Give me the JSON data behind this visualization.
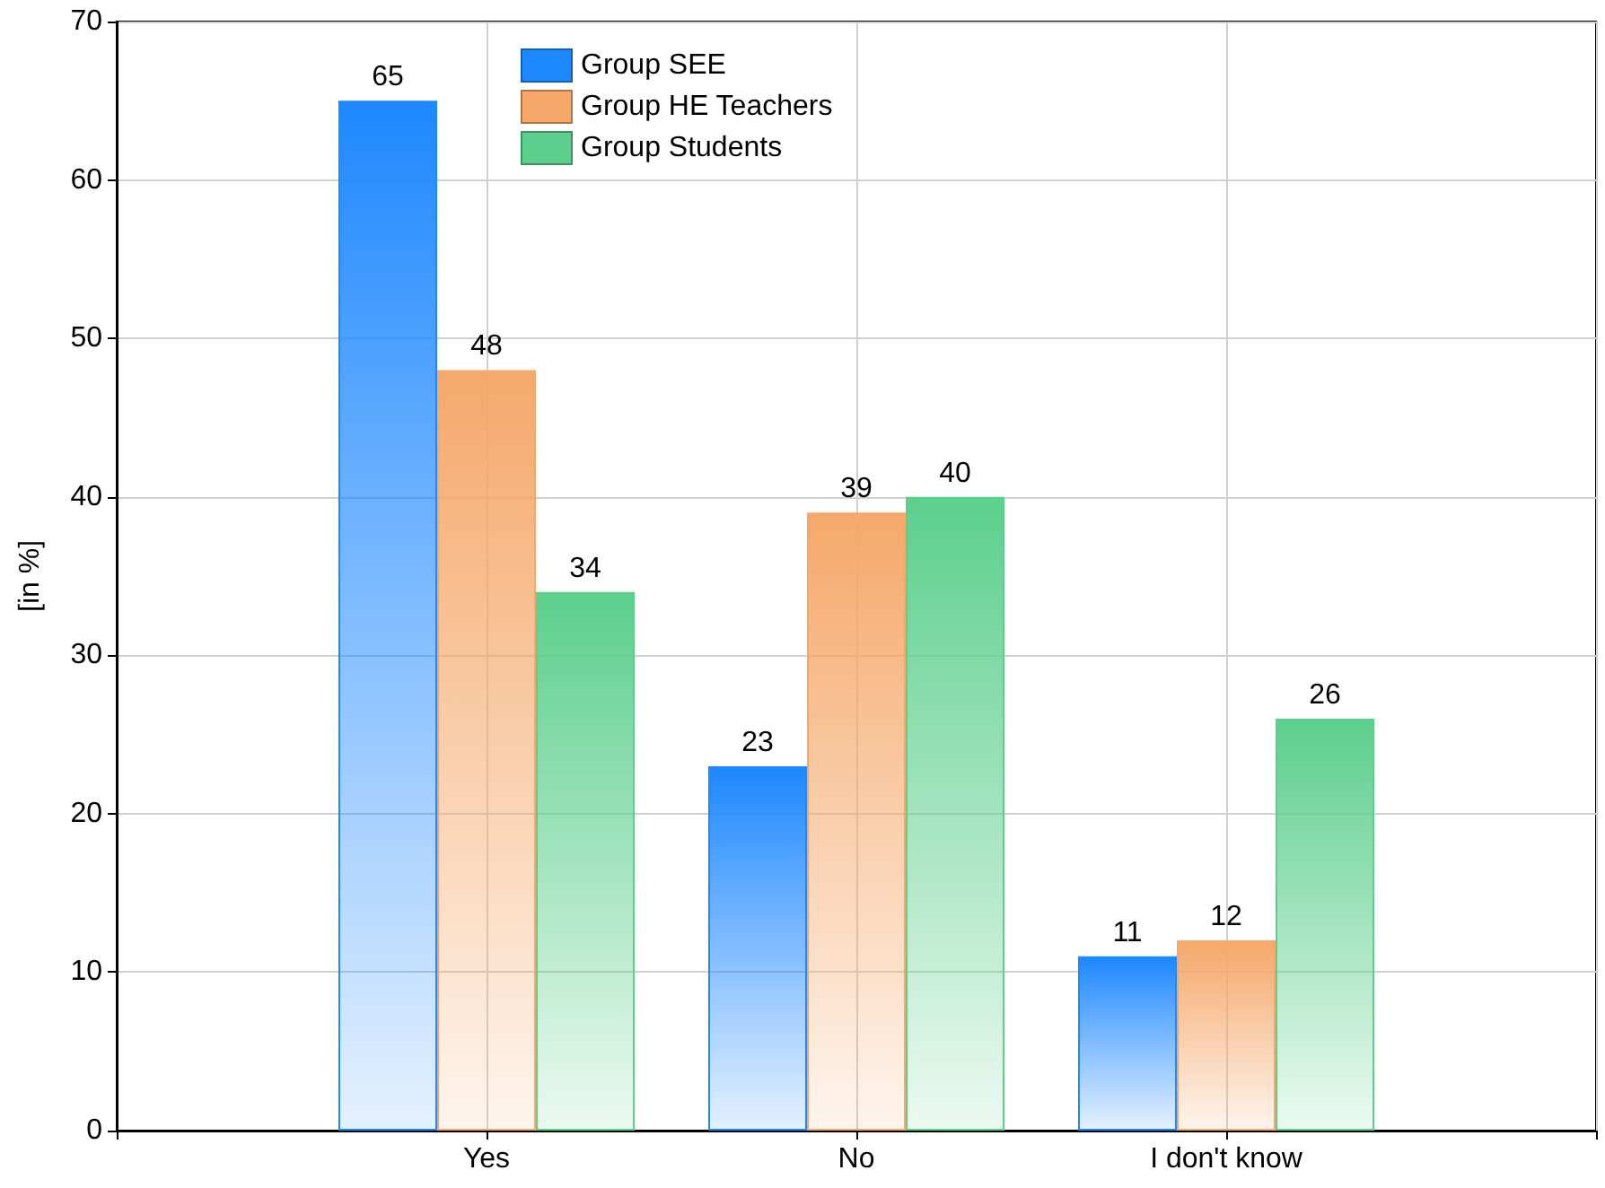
{
  "chart_data": {
    "type": "bar",
    "ylabel": "[in %]",
    "categories": [
      "Yes",
      "No",
      "I don't know"
    ],
    "series": [
      {
        "name": "Group SEE",
        "color": "#1e88ff",
        "values": [
          65,
          23,
          11
        ]
      },
      {
        "name": "Group HE Teachers",
        "color": "#f5a86a",
        "values": [
          48,
          39,
          12
        ]
      },
      {
        "name": "Group Students",
        "color": "#5ccf8c",
        "values": [
          34,
          40,
          26
        ]
      }
    ],
    "ylim": [
      0,
      70
    ],
    "yticks": [
      0,
      10,
      20,
      30,
      40,
      50,
      60,
      70
    ],
    "grid": true,
    "legend": "top",
    "data_labels": true
  }
}
